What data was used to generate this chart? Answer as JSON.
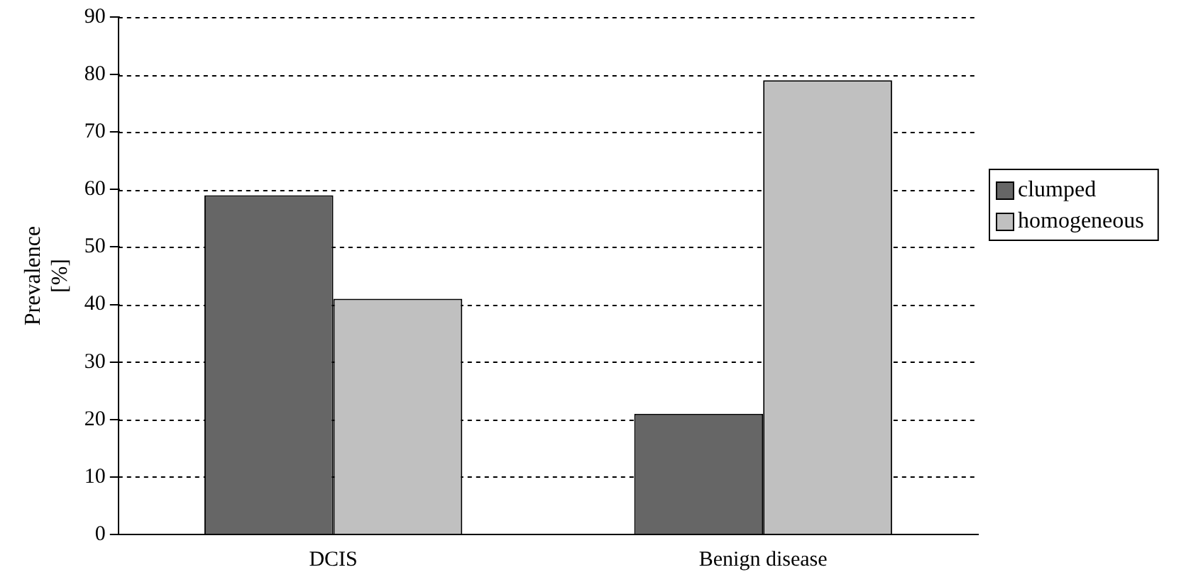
{
  "chart_data": {
    "type": "bar",
    "ylabel": "Prevalence\n[%]",
    "categories": [
      "DCIS",
      "Benign disease"
    ],
    "series": [
      {
        "name": "clumped",
        "color": "#666666",
        "values": [
          59,
          21
        ]
      },
      {
        "name": "homogeneous",
        "color": "#c0c0c0",
        "values": [
          41,
          79
        ]
      }
    ],
    "ylim": [
      0,
      90
    ],
    "yticks": [
      0,
      10,
      20,
      30,
      40,
      50,
      60,
      70,
      80,
      90
    ],
    "grid": "y",
    "legend": "right"
  }
}
